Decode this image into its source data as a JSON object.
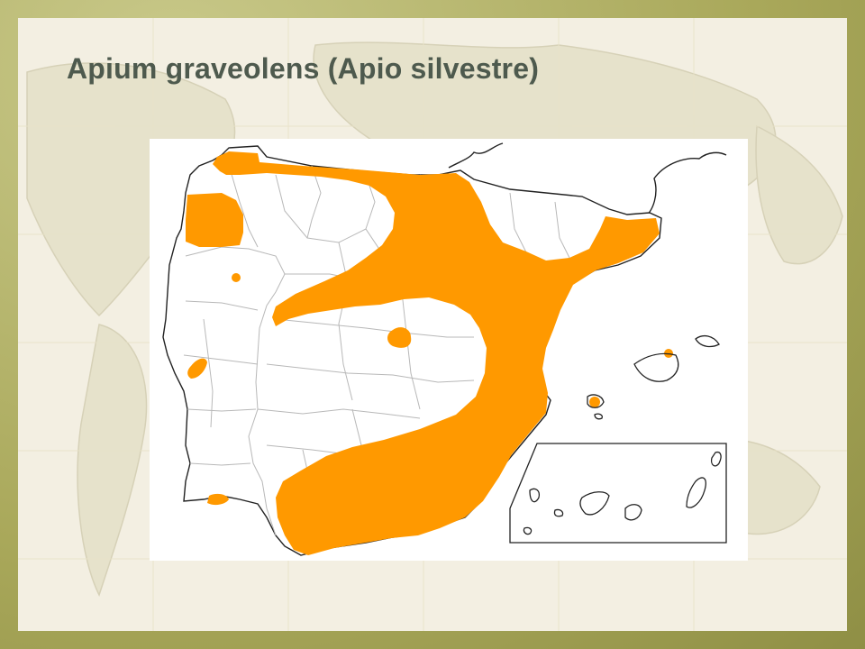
{
  "slide": {
    "title": "Apium graveolens (Apio silvestre)"
  },
  "map": {
    "subject": "Apium graveolens",
    "region": "Iberian Peninsula, Balearic and Canary Islands",
    "colors": {
      "distribution": "#ff9900",
      "border": "#222222",
      "province_line": "#b8b8b8",
      "land": "#ffffff"
    }
  }
}
